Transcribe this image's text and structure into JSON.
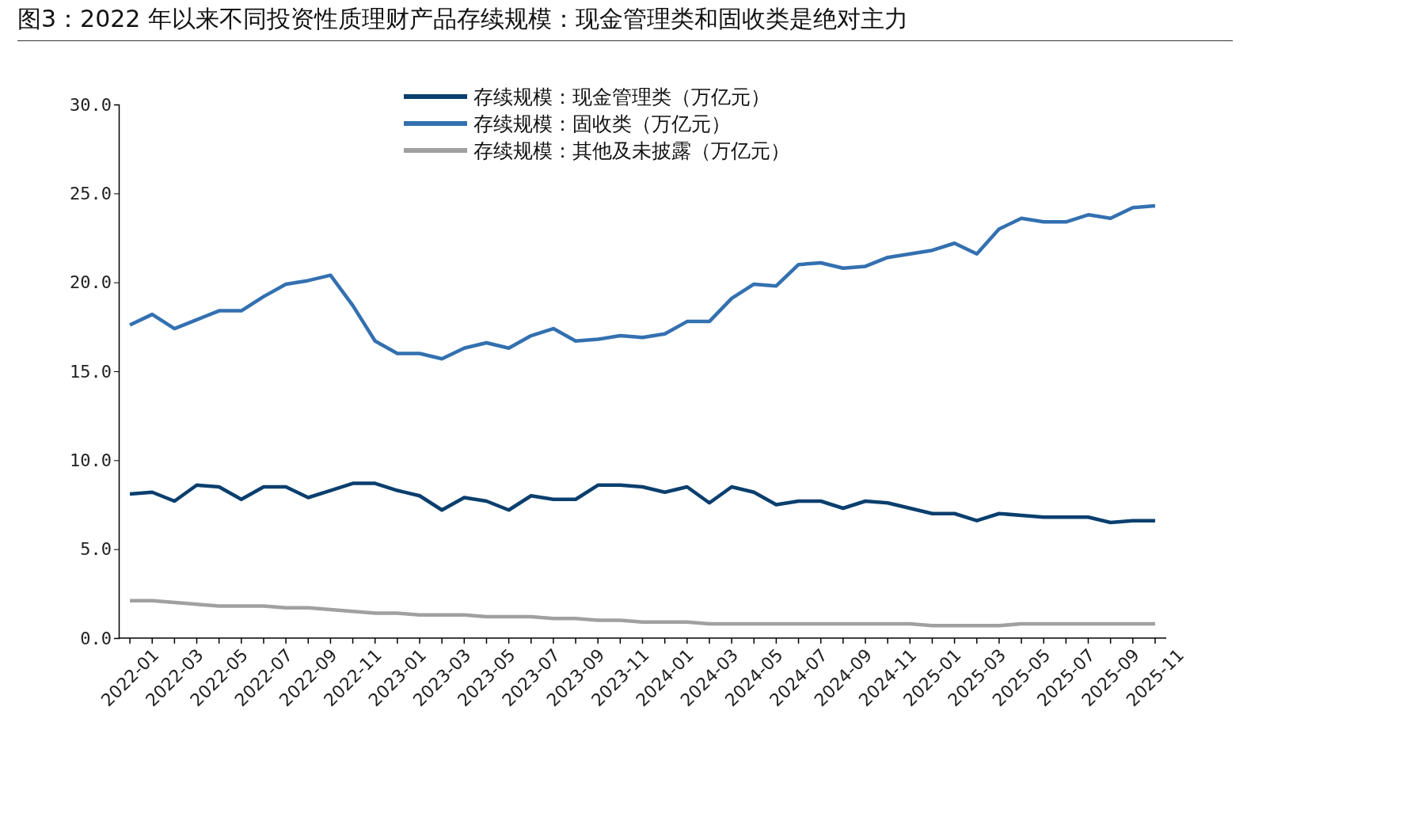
{
  "chart_data": {
    "type": "line",
    "title": "图3：2022 年以来不同投资性质理财产品存续规模：现金管理类和固收类是绝对主力",
    "categories": [
      "2022-01",
      null,
      "2022-03",
      null,
      "2022-05",
      null,
      "2022-07",
      null,
      "2022-09",
      null,
      "2022-11",
      null,
      "2023-01",
      null,
      "2023-03",
      null,
      "2023-05",
      null,
      "2023-07",
      null,
      "2023-09",
      null,
      "2023-11",
      null,
      "2024-01",
      null,
      "2024-03",
      null,
      "2024-05",
      null,
      "2024-07",
      null,
      "2024-09",
      null,
      "2024-11",
      null,
      "2025-01",
      null,
      "2025-03",
      null,
      "2025-05",
      null,
      "2025-07",
      null,
      "2025-09",
      null,
      "2025-11"
    ],
    "series": [
      {
        "name": "存续规模：现金管理类（万亿元）",
        "color": "#0a3f6e",
        "values": [
          8.1,
          8.2,
          7.7,
          8.6,
          8.5,
          7.8,
          8.5,
          8.5,
          7.9,
          8.3,
          8.7,
          8.7,
          8.3,
          8.0,
          7.2,
          7.9,
          7.7,
          7.2,
          8.0,
          7.8,
          7.8,
          8.6,
          8.6,
          8.5,
          8.2,
          8.5,
          7.6,
          8.5,
          8.2,
          7.5,
          7.7,
          7.7,
          7.3,
          7.7,
          7.6,
          7.3,
          7.0,
          7.0,
          6.6,
          7.0,
          6.9,
          6.8,
          6.8,
          6.8,
          6.5,
          6.6,
          6.6
        ]
      },
      {
        "name": "存续规模：固收类（万亿元）",
        "color": "#3370b0",
        "values": [
          17.6,
          18.2,
          17.4,
          17.9,
          18.4,
          18.4,
          19.2,
          19.9,
          20.1,
          20.4,
          18.7,
          16.7,
          16.0,
          16.0,
          15.7,
          16.3,
          16.6,
          16.3,
          17.0,
          17.4,
          16.7,
          16.8,
          17.0,
          16.9,
          17.1,
          17.8,
          17.8,
          19.1,
          19.9,
          19.8,
          21.0,
          21.1,
          20.8,
          20.9,
          21.4,
          21.6,
          21.8,
          22.2,
          21.6,
          23.0,
          23.6,
          23.4,
          23.4,
          23.8,
          23.6,
          24.2,
          24.3
        ]
      },
      {
        "name": "存续规模：其他及未披露（万亿元）",
        "color": "#a0a0a0",
        "values": [
          2.1,
          2.1,
          2.0,
          1.9,
          1.8,
          1.8,
          1.8,
          1.7,
          1.7,
          1.6,
          1.5,
          1.4,
          1.4,
          1.3,
          1.3,
          1.3,
          1.2,
          1.2,
          1.2,
          1.1,
          1.1,
          1.0,
          1.0,
          0.9,
          0.9,
          0.9,
          0.8,
          0.8,
          0.8,
          0.8,
          0.8,
          0.8,
          0.8,
          0.8,
          0.8,
          0.8,
          0.7,
          0.7,
          0.7,
          0.7,
          0.8,
          0.8,
          0.8,
          0.8,
          0.8,
          0.8,
          0.8
        ]
      }
    ],
    "ylim": [
      0,
      30
    ],
    "yticks": [
      {
        "value": 0,
        "label": "0.0"
      },
      {
        "value": 5,
        "label": "5.0"
      },
      {
        "value": 10,
        "label": "10.0"
      },
      {
        "value": 15,
        "label": "15.0"
      },
      {
        "value": 20,
        "label": "20.0"
      },
      {
        "value": 25,
        "label": "25.0"
      },
      {
        "value": 30,
        "label": "30.0"
      }
    ],
    "grid": false,
    "legend": "top",
    "marker": "none",
    "line_style": "solid"
  }
}
